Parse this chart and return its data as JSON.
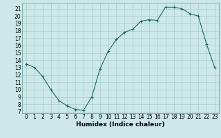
{
  "x": [
    0,
    1,
    2,
    3,
    4,
    5,
    6,
    7,
    8,
    9,
    10,
    11,
    12,
    13,
    14,
    15,
    16,
    17,
    18,
    19,
    20,
    21,
    22,
    23
  ],
  "y": [
    13.5,
    13.0,
    11.8,
    10.0,
    8.5,
    7.8,
    7.3,
    7.2,
    9.0,
    12.8,
    15.2,
    16.8,
    17.8,
    18.2,
    19.3,
    19.5,
    19.4,
    21.2,
    21.2,
    21.0,
    20.3,
    20.0,
    16.2,
    13.0
  ],
  "xlabel": "Humidex (Indice chaleur)",
  "xlim": [
    -0.5,
    23.5
  ],
  "ylim": [
    6.8,
    21.8
  ],
  "yticks": [
    7,
    8,
    9,
    10,
    11,
    12,
    13,
    14,
    15,
    16,
    17,
    18,
    19,
    20,
    21
  ],
  "xticks": [
    0,
    1,
    2,
    3,
    4,
    5,
    6,
    7,
    8,
    9,
    10,
    11,
    12,
    13,
    14,
    15,
    16,
    17,
    18,
    19,
    20,
    21,
    22,
    23
  ],
  "line_color": "#1a6b5a",
  "marker": "+",
  "bg_color": "#cce8e8",
  "grid_color": "#aacccc",
  "label_fontsize": 6.5,
  "tick_fontsize": 5.5
}
